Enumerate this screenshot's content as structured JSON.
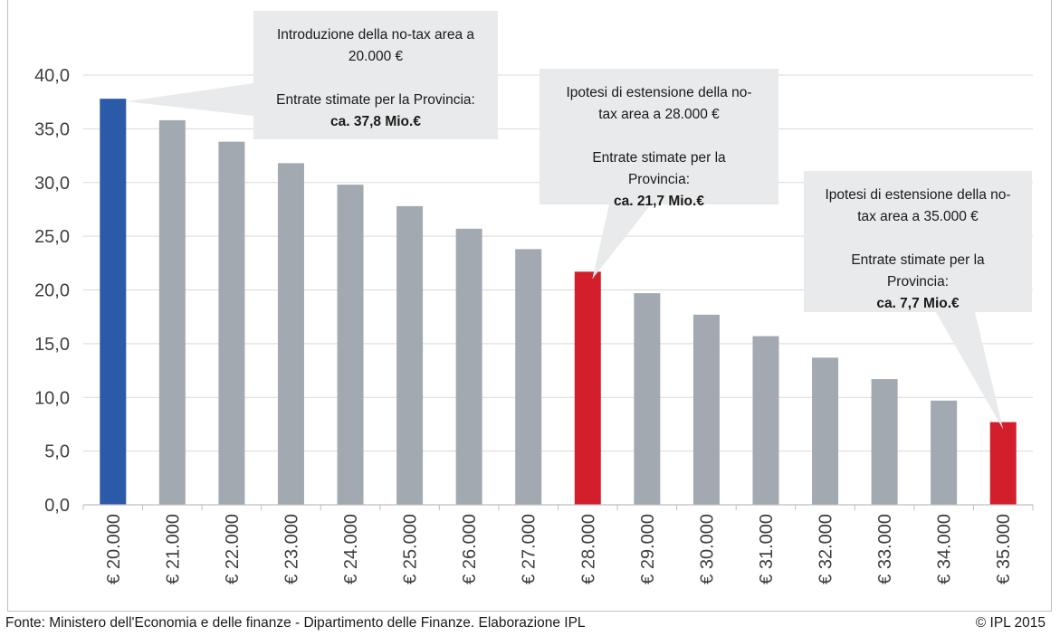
{
  "chart_data": {
    "type": "bar",
    "categories": [
      "€ 20.000",
      "€ 21.000",
      "€ 22.000",
      "€ 23.000",
      "€ 24.000",
      "€ 25.000",
      "€ 26.000",
      "€ 27.000",
      "€ 28.000",
      "€ 29.000",
      "€ 30.000",
      "€ 31.000",
      "€ 32.000",
      "€ 33.000",
      "€ 34.000",
      "€ 35.000"
    ],
    "values": [
      37.8,
      35.8,
      33.8,
      31.8,
      29.8,
      27.8,
      25.7,
      23.8,
      21.7,
      19.7,
      17.7,
      15.7,
      13.7,
      11.7,
      9.7,
      7.7
    ],
    "ylim": [
      0,
      40
    ],
    "yticks": [
      "0,0",
      "5,0",
      "10,0",
      "15,0",
      "20,0",
      "25,0",
      "30,0",
      "35,0",
      "40,0"
    ],
    "ytick_values": [
      0,
      5,
      10,
      15,
      20,
      25,
      30,
      35,
      40
    ],
    "grid": true,
    "colors": {
      "default": "#a2a9b1",
      "highlight_blue": "#2b5ba8",
      "highlight_red": "#d21f2b",
      "callout_bg": "#e9eaeb",
      "grid": "#d9d9d9"
    },
    "bar_colors": [
      "#2b5ba8",
      "#a2a9b1",
      "#a2a9b1",
      "#a2a9b1",
      "#a2a9b1",
      "#a2a9b1",
      "#a2a9b1",
      "#a2a9b1",
      "#d21f2b",
      "#a2a9b1",
      "#a2a9b1",
      "#a2a9b1",
      "#a2a9b1",
      "#a2a9b1",
      "#a2a9b1",
      "#d21f2b"
    ],
    "annotations": [
      {
        "bar_index": 0,
        "lines": [
          "Introduzione della no-tax area a",
          "20.000 €",
          "",
          "Entrate stimate per la Provincia:",
          "ca. 37,8 Mio.€"
        ],
        "bold_line": 4
      },
      {
        "bar_index": 8,
        "lines": [
          "Ipotesi di estensione della no-",
          "tax area a 28.000 €",
          "",
          "Entrate stimate per la",
          "Provincia:",
          "ca. 21,7 Mio.€"
        ],
        "bold_line": 5
      },
      {
        "bar_index": 15,
        "lines": [
          "Ipotesi di estensione della no-",
          "tax area a 35.000 €",
          "",
          "Entrate stimate per la",
          "Provincia:",
          "ca. 7,7 Mio.€"
        ],
        "bold_line": 5
      }
    ]
  },
  "footer": {
    "source": "Fonte: Ministero dell'Economia e delle finanze - Dipartimento delle Finanze. Elaborazione IPL",
    "copyright": "© IPL 2015"
  }
}
